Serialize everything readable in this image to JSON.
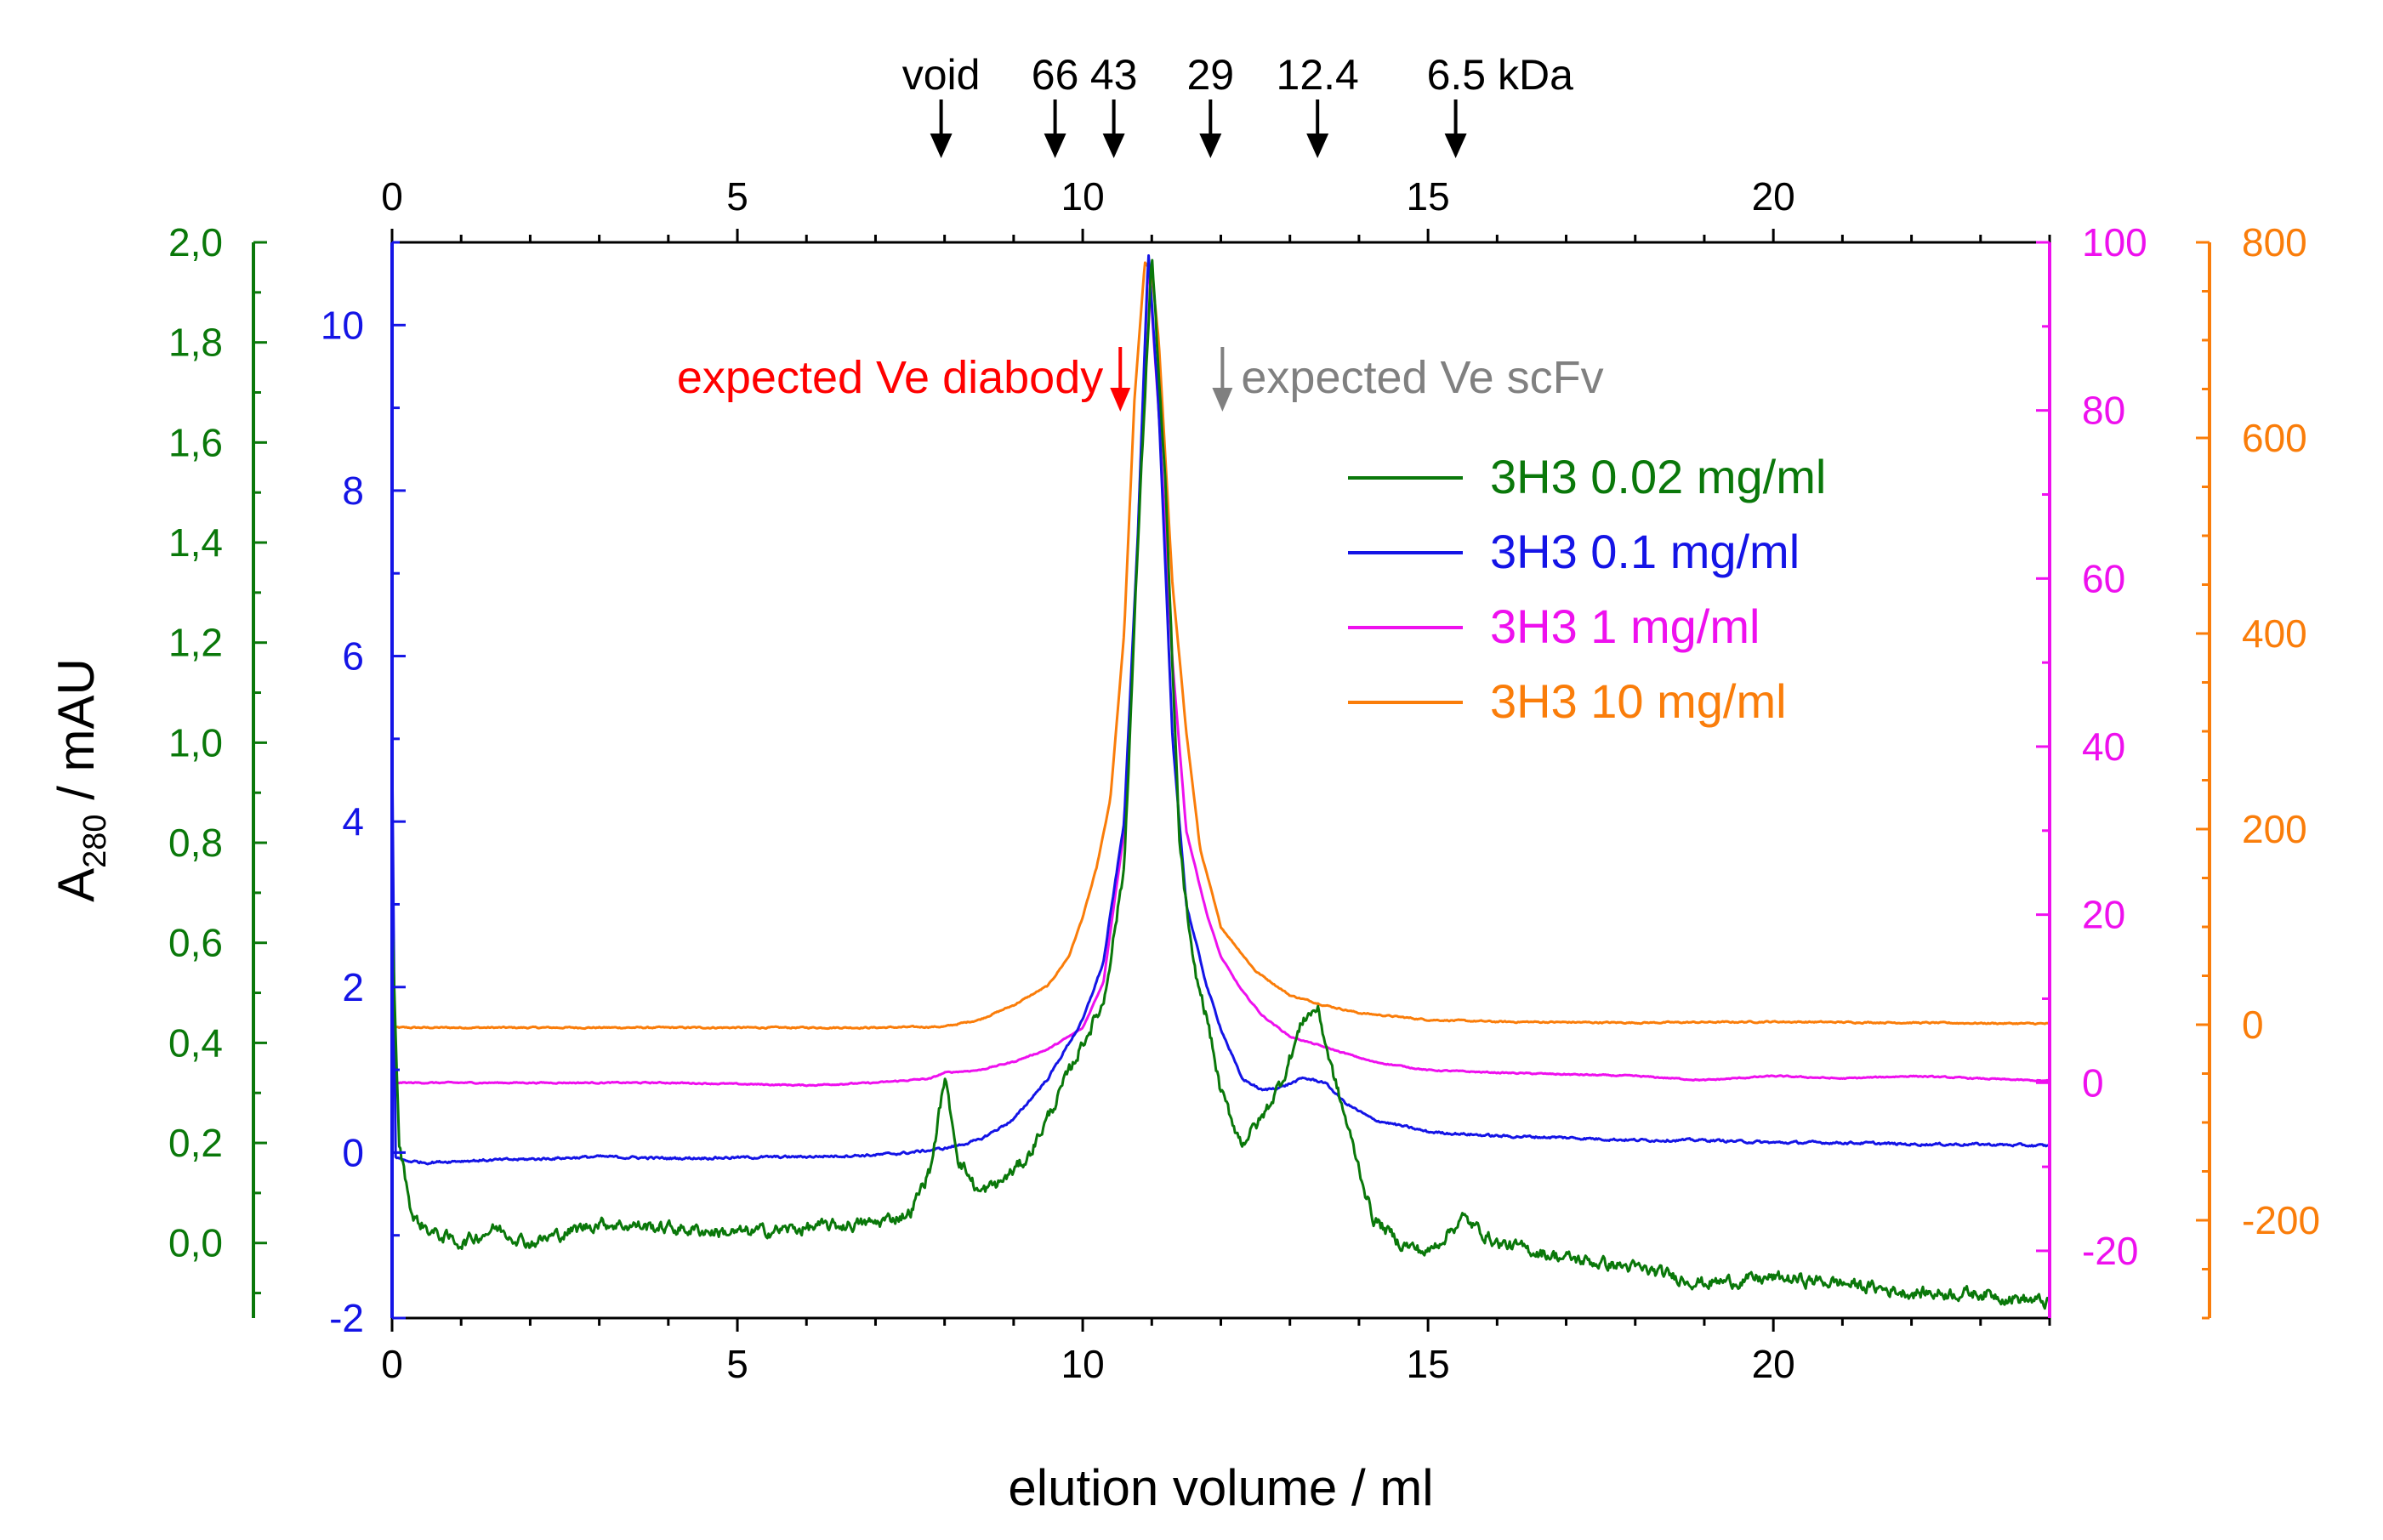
{
  "chart_data": {
    "type": "line",
    "xlabel": "elution volume / ml",
    "ylabel_main": "A",
    "ylabel_sub": "280",
    "ylabel_unit": " / mAU",
    "xlim": [
      0,
      24
    ],
    "x_ticks": [
      "0",
      "5",
      "10",
      "15",
      "20"
    ],
    "x_tick_values": [
      0,
      5,
      10,
      15,
      20
    ],
    "axes": {
      "green": {
        "range": [
          -0.15,
          2.0
        ],
        "color": "#0a780a",
        "tick_values": [
          0.0,
          0.2,
          0.4,
          0.6,
          0.8,
          1.0,
          1.2,
          1.4,
          1.6,
          1.8,
          2.0
        ],
        "tick_labels": [
          "0,0",
          "0,2",
          "0,4",
          "0,6",
          "0,8",
          "1,0",
          "1,2",
          "1,4",
          "1,6",
          "1,8",
          "2,0"
        ]
      },
      "blue": {
        "range": [
          -2,
          11
        ],
        "color": "#1414e6",
        "tick_values": [
          -2,
          0,
          2,
          4,
          6,
          8,
          10
        ],
        "tick_labels": [
          "-2",
          "0",
          "2",
          "4",
          "6",
          "8",
          "10"
        ]
      },
      "magenta": {
        "range": [
          -28,
          100
        ],
        "color": "#ee10ee",
        "tick_values": [
          -20,
          0,
          20,
          40,
          60,
          80,
          100
        ],
        "tick_labels": [
          "-20",
          "0",
          "20",
          "40",
          "60",
          "80",
          "100"
        ]
      },
      "orange": {
        "range": [
          -300,
          800
        ],
        "color": "#fa7d0a",
        "tick_values": [
          -200,
          0,
          200,
          400,
          600,
          800
        ],
        "tick_labels": [
          "-200",
          "0",
          "200",
          "400",
          "600",
          "800"
        ]
      }
    },
    "series": [
      {
        "name": "3H3 0.02 mg/ml",
        "axis": "green",
        "color": "#0a780a",
        "x": [
          0.0,
          0.1,
          0.3,
          0.6,
          1.0,
          1.5,
          2.0,
          3.0,
          4.0,
          5.0,
          6.0,
          7.0,
          7.5,
          7.8,
          8.0,
          8.2,
          8.5,
          8.8,
          9.2,
          9.6,
          10.0,
          10.3,
          10.6,
          10.8,
          11.0,
          11.2,
          11.4,
          11.6,
          11.8,
          12.0,
          12.3,
          12.6,
          12.9,
          13.2,
          13.4,
          13.6,
          13.9,
          14.2,
          14.6,
          15.0,
          15.5,
          16.0,
          17.0,
          18.0,
          19.0,
          20.0,
          21.0,
          22.0,
          23.0,
          24.0
        ],
        "y": [
          0.65,
          0.2,
          0.05,
          0.02,
          0.0,
          0.03,
          0.0,
          0.04,
          0.03,
          0.02,
          0.03,
          0.04,
          0.06,
          0.15,
          0.33,
          0.17,
          0.1,
          0.12,
          0.17,
          0.28,
          0.4,
          0.48,
          0.75,
          1.4,
          1.98,
          1.5,
          0.8,
          0.55,
          0.45,
          0.3,
          0.2,
          0.25,
          0.33,
          0.45,
          0.47,
          0.35,
          0.2,
          0.05,
          0.0,
          -0.02,
          0.05,
          0.0,
          -0.03,
          -0.05,
          -0.08,
          -0.07,
          -0.08,
          -0.1,
          -0.1,
          -0.12
        ]
      },
      {
        "name": "3H3 0.1 mg/ml",
        "axis": "blue",
        "color": "#1414e6",
        "x": [
          0.0,
          0.05,
          0.2,
          0.5,
          1.0,
          2.0,
          3.0,
          4.0,
          5.0,
          6.0,
          7.0,
          7.5,
          8.0,
          8.5,
          9.0,
          9.5,
          10.0,
          10.3,
          10.6,
          10.8,
          10.95,
          11.1,
          11.3,
          11.5,
          11.8,
          12.0,
          12.3,
          12.6,
          12.9,
          13.2,
          13.5,
          13.8,
          14.2,
          15.0,
          16.0,
          17.0,
          18.0,
          19.0,
          20.0,
          21.0,
          22.0,
          23.0,
          24.0
        ],
        "y": [
          5.0,
          -0.05,
          -0.1,
          -0.12,
          -0.1,
          -0.08,
          -0.05,
          -0.07,
          -0.06,
          -0.05,
          -0.03,
          0.0,
          0.05,
          0.15,
          0.4,
          0.9,
          1.6,
          2.3,
          4.0,
          7.5,
          10.9,
          9.0,
          5.0,
          3.0,
          2.0,
          1.5,
          0.9,
          0.75,
          0.8,
          0.9,
          0.85,
          0.6,
          0.4,
          0.25,
          0.2,
          0.18,
          0.15,
          0.15,
          0.12,
          0.12,
          0.1,
          0.1,
          0.08
        ]
      },
      {
        "name": "3H3 1 mg/ml",
        "axis": "magenta",
        "color": "#ee10ee",
        "x": [
          0.0,
          1.0,
          2.0,
          4.0,
          6.0,
          7.0,
          7.8,
          8.0,
          8.5,
          9.0,
          9.5,
          10.0,
          10.3,
          10.6,
          10.8,
          10.95,
          11.1,
          11.3,
          11.5,
          11.8,
          12.0,
          12.3,
          12.6,
          13.0,
          13.4,
          13.8,
          14.2,
          15.0,
          16.0,
          17.0,
          18.0,
          19.0,
          20.0,
          21.0,
          22.0,
          23.0,
          24.0
        ],
        "y": [
          0.0,
          0.0,
          0.0,
          0.0,
          -0.3,
          0.0,
          0.5,
          1.2,
          1.5,
          2.5,
          4.0,
          6.5,
          12.0,
          30.0,
          65.0,
          98.0,
          80.0,
          50.0,
          30.0,
          20.0,
          15.0,
          11.0,
          8.0,
          5.5,
          4.5,
          3.5,
          2.5,
          1.5,
          1.2,
          1.0,
          0.8,
          0.3,
          0.8,
          0.5,
          0.8,
          0.5,
          0.2
        ]
      },
      {
        "name": "3H3 10 mg/ml",
        "axis": "orange",
        "color": "#fa7d0a",
        "x": [
          0.0,
          1.0,
          3.0,
          5.0,
          7.0,
          8.0,
          8.5,
          9.0,
          9.5,
          9.8,
          10.0,
          10.2,
          10.4,
          10.6,
          10.75,
          10.9,
          11.0,
          11.1,
          11.3,
          11.5,
          11.7,
          12.0,
          12.5,
          13.0,
          13.5,
          14.0,
          15.0,
          16.0,
          18.0,
          20.0,
          22.0,
          24.0
        ],
        "y": [
          -3.0,
          -3.0,
          -3.0,
          -3.0,
          -3.0,
          -2.0,
          5.0,
          20.0,
          40.0,
          70.0,
          110.0,
          160.0,
          230.0,
          400.0,
          640.0,
          780.0,
          770.0,
          700.0,
          450.0,
          300.0,
          180.0,
          100.0,
          55.0,
          30.0,
          20.0,
          12.0,
          5.0,
          3.0,
          2.0,
          3.0,
          2.0,
          1.0
        ]
      }
    ],
    "top_axis": {
      "tick_labels": [
        "0",
        "5",
        "10",
        "15",
        "20"
      ],
      "tick_values": [
        0,
        5,
        10,
        15,
        20
      ],
      "markers": [
        {
          "label": "void",
          "x": 7.95
        },
        {
          "label": "66",
          "x": 9.6
        },
        {
          "label": "43",
          "x": 10.45
        },
        {
          "label": "29",
          "x": 11.85
        },
        {
          "label": "12.4",
          "x": 13.4
        },
        {
          "label": "6.5 kDa",
          "x": 15.4
        }
      ]
    },
    "annotations": [
      {
        "text": "expected Ve diabody",
        "x": 10.15,
        "color": "#ff0000"
      },
      {
        "text": "expected Ve scFv",
        "x": 11.9,
        "color": "#808080"
      }
    ]
  }
}
